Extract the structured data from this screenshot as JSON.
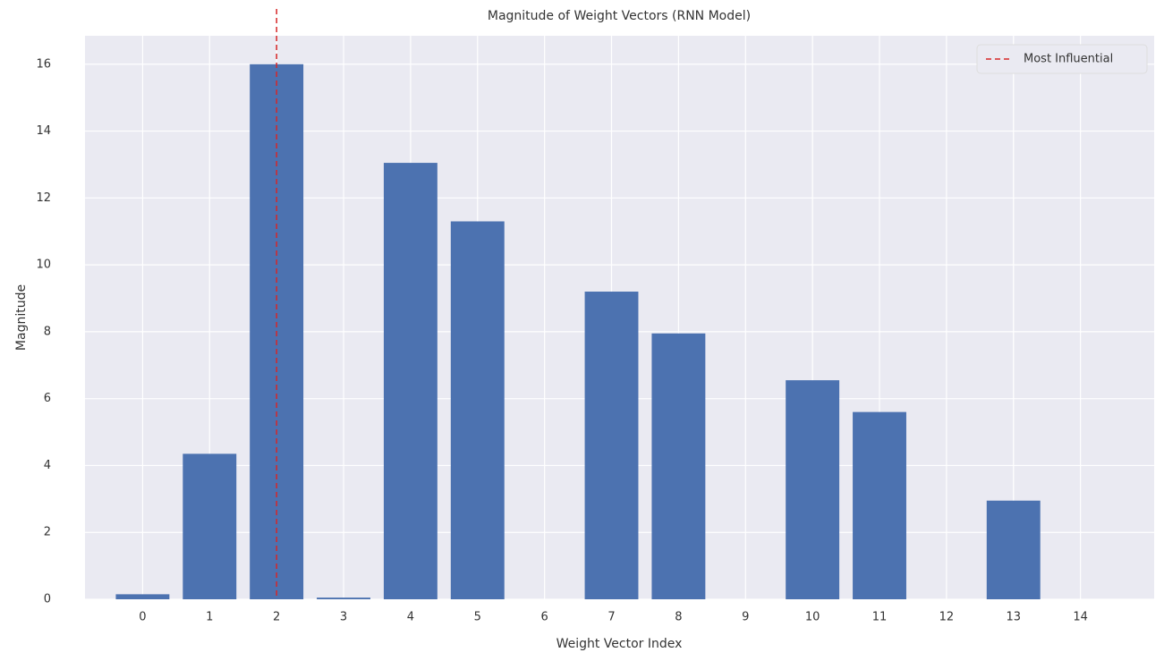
{
  "chart_data": {
    "type": "bar",
    "title": "Magnitude of Weight Vectors (RNN Model)",
    "xlabel": "Weight Vector Index",
    "ylabel": "Magnitude",
    "x": [
      0,
      1,
      2,
      3,
      4,
      5,
      6,
      7,
      8,
      9,
      10,
      11,
      12,
      13,
      14
    ],
    "values": [
      0.15,
      4.35,
      16.0,
      0.05,
      13.05,
      11.3,
      0,
      9.2,
      7.95,
      0,
      6.55,
      5.6,
      0,
      2.95,
      0
    ],
    "bar_width": 0.8,
    "color": "#4c72b0",
    "xlim": [
      -0.86,
      15.1
    ],
    "xticks": [
      0,
      1,
      2,
      3,
      4,
      5,
      6,
      7,
      8,
      9,
      10,
      11,
      12,
      13,
      14
    ],
    "ylim": [
      0,
      16.85
    ],
    "yticks": [
      0,
      2,
      4,
      6,
      8,
      10,
      12,
      14,
      16
    ],
    "grid": true,
    "vline": {
      "x": 2,
      "label": "Most Influential",
      "color": "#d62728"
    },
    "legend": "upper right"
  }
}
